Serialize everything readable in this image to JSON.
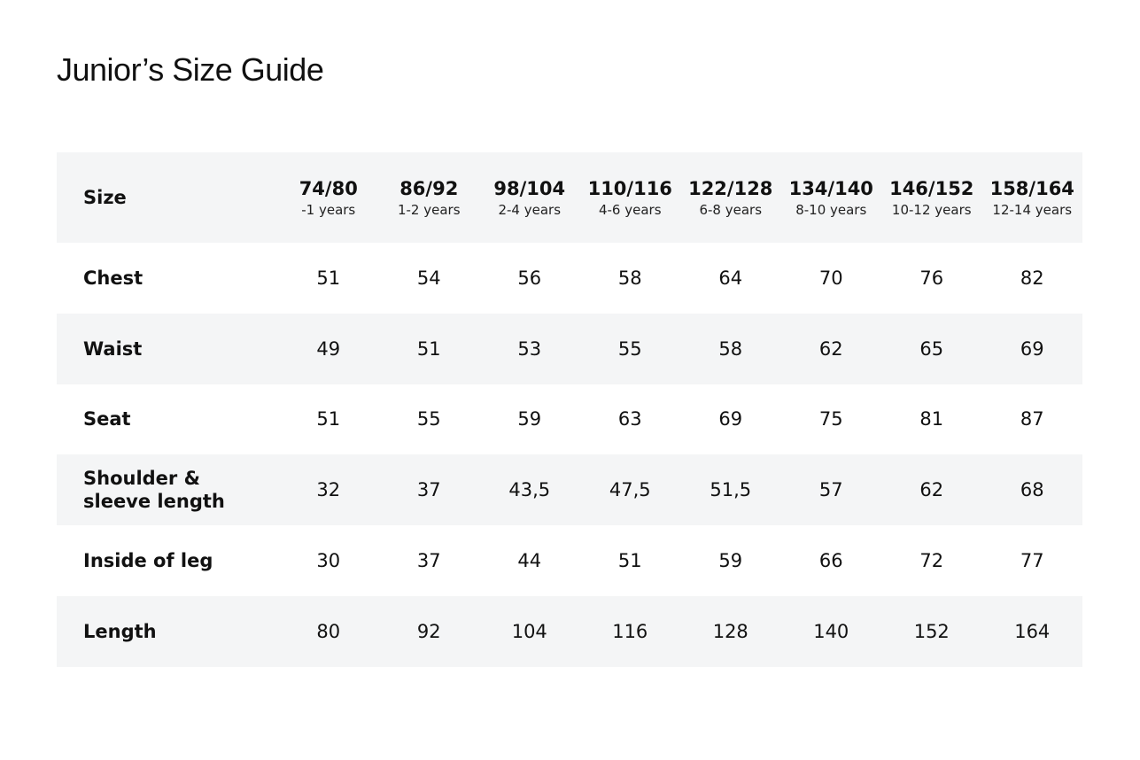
{
  "title": "Junior’s Size Guide",
  "table": {
    "header": {
      "label": "Size",
      "columns": [
        {
          "size": "74/80",
          "age": "-1 years"
        },
        {
          "size": "86/92",
          "age": "1-2 years"
        },
        {
          "size": "98/104",
          "age": "2-4 years"
        },
        {
          "size": "110/116",
          "age": "4-6 years"
        },
        {
          "size": "122/128",
          "age": "6-8 years"
        },
        {
          "size": "134/140",
          "age": "8-10 years"
        },
        {
          "size": "146/152",
          "age": "10-12 years"
        },
        {
          "size": "158/164",
          "age": "12-14 years"
        }
      ]
    },
    "rows": [
      {
        "label": "Chest",
        "values": [
          "51",
          "54",
          "56",
          "58",
          "64",
          "70",
          "76",
          "82"
        ]
      },
      {
        "label": "Waist",
        "values": [
          "49",
          "51",
          "53",
          "55",
          "58",
          "62",
          "65",
          "69"
        ]
      },
      {
        "label": "Seat",
        "values": [
          "51",
          "55",
          "59",
          "63",
          "69",
          "75",
          "81",
          "87"
        ]
      },
      {
        "label": "Shoulder & sleeve length",
        "values": [
          "32",
          "37",
          "43,5",
          "47,5",
          "51,5",
          "57",
          "62",
          "68"
        ]
      },
      {
        "label": "Inside of leg",
        "values": [
          "30",
          "37",
          "44",
          "51",
          "59",
          "66",
          "72",
          "77"
        ]
      },
      {
        "label": "Length",
        "values": [
          "80",
          "92",
          "104",
          "116",
          "128",
          "140",
          "152",
          "164"
        ]
      }
    ]
  }
}
